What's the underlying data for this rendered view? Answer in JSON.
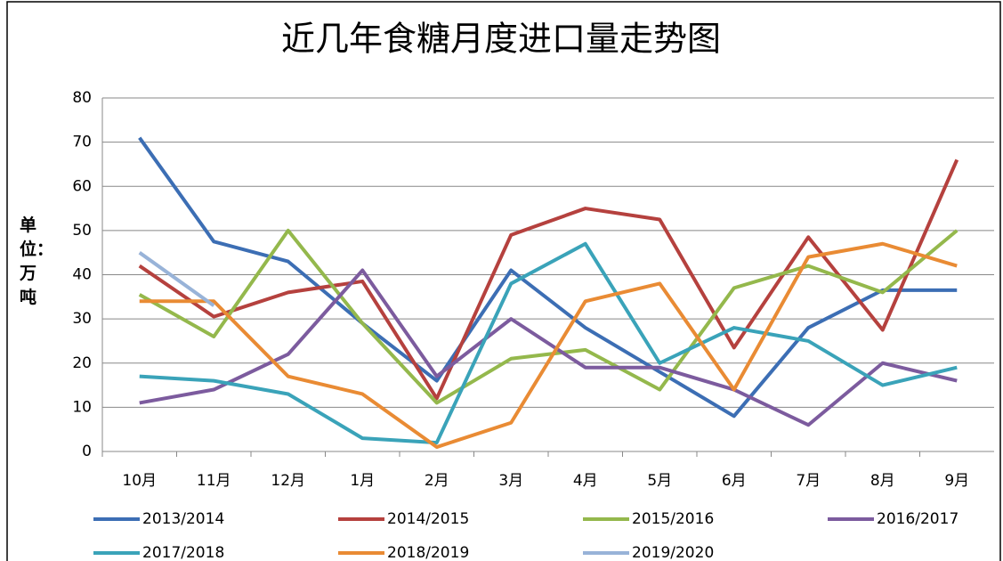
{
  "chart_data": {
    "type": "line",
    "title": "近几年食糖月度进口量走势图",
    "y_label": "单位：万吨",
    "categories": [
      "10月",
      "11月",
      "12月",
      "1月",
      "2月",
      "3月",
      "4月",
      "5月",
      "6月",
      "7月",
      "8月",
      "9月"
    ],
    "series": [
      {
        "name": "2013/2014",
        "color": "#3c6eb4",
        "values": [
          71,
          47.5,
          43,
          29,
          16,
          41,
          28,
          18,
          8,
          28,
          36.5,
          36.5
        ]
      },
      {
        "name": "2014/2015",
        "color": "#b5413e",
        "values": [
          42,
          30.5,
          36,
          38.5,
          12,
          49,
          55,
          52.5,
          23.5,
          48.5,
          27.5,
          66
        ]
      },
      {
        "name": "2015/2016",
        "color": "#94b84c",
        "values": [
          35.5,
          26,
          50,
          29,
          11,
          21,
          23,
          14,
          37,
          42,
          36,
          50
        ]
      },
      {
        "name": "2016/2017",
        "color": "#7c5b9e",
        "values": [
          11,
          14,
          22,
          41,
          17,
          30,
          19,
          19,
          14,
          6,
          20,
          16
        ]
      },
      {
        "name": "2017/2018",
        "color": "#3aa3b9",
        "values": [
          17,
          16,
          13,
          3,
          2,
          38,
          47,
          20,
          28,
          25,
          15,
          19
        ]
      },
      {
        "name": "2018/2019",
        "color": "#e98b34",
        "values": [
          34,
          34,
          17,
          13,
          1,
          6.5,
          34,
          38,
          14,
          44,
          47,
          42
        ]
      },
      {
        "name": "2019/2020",
        "color": "#98b3d8",
        "values": [
          45,
          33,
          null,
          null,
          null,
          null,
          null,
          null,
          null,
          null,
          null,
          null
        ]
      }
    ],
    "ylim": [
      0,
      80
    ],
    "yticks": [
      0,
      10,
      20,
      30,
      40,
      50,
      60,
      70,
      80
    ],
    "grid": true,
    "legend": "bottom"
  }
}
